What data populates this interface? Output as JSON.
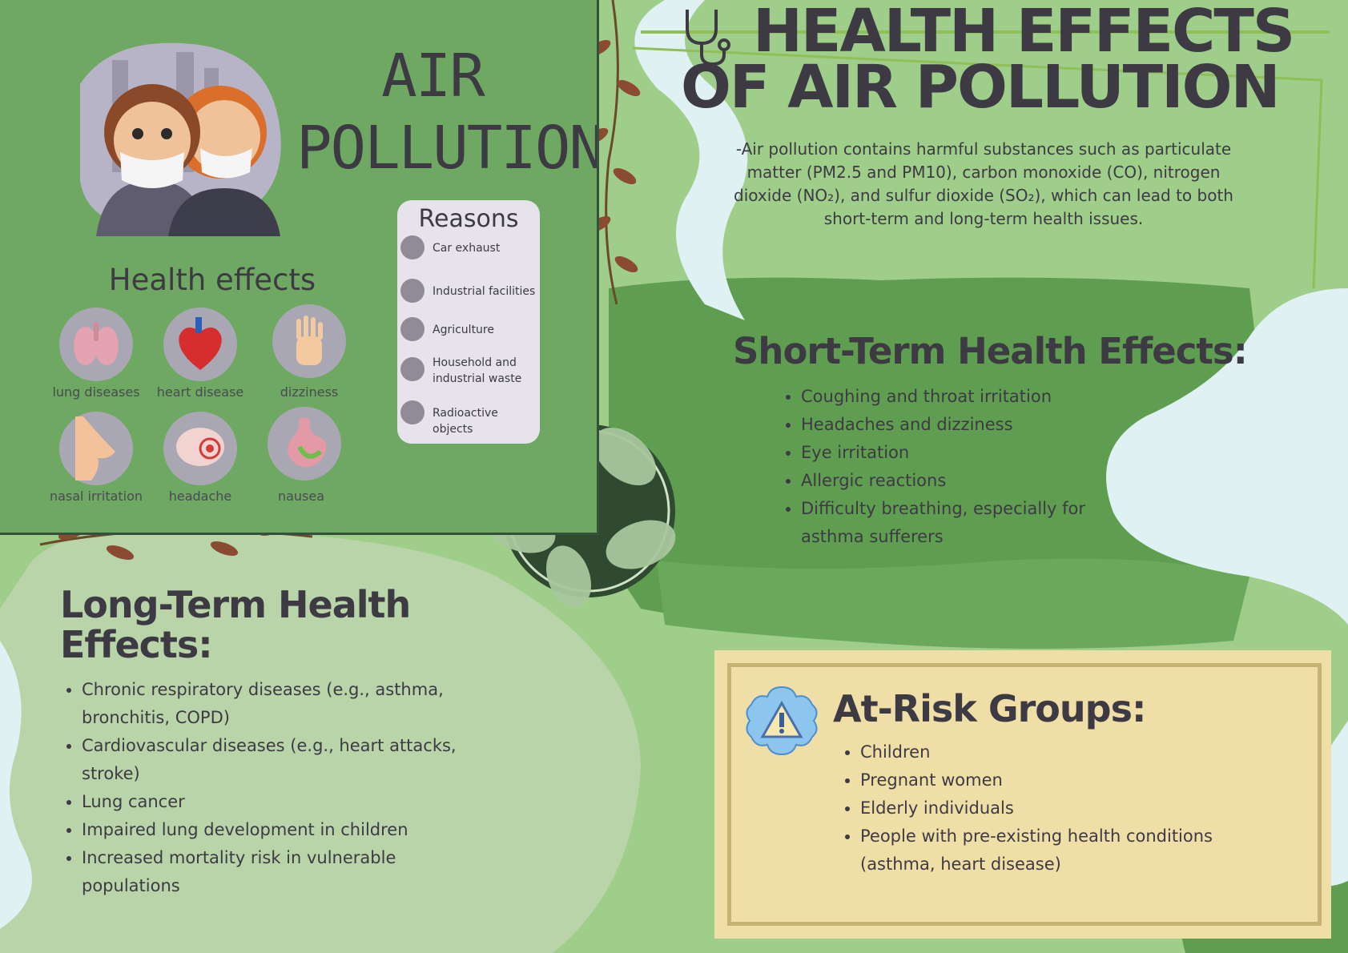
{
  "panel": {
    "title": "AIR POLLUTION",
    "health_effects_heading": "Health effects",
    "effects": [
      {
        "label": "lung diseases",
        "icon": "lungs-icon"
      },
      {
        "label": "heart disease",
        "icon": "heart-icon"
      },
      {
        "label": "dizziness",
        "icon": "hand-icon"
      },
      {
        "label": "nasal irritation",
        "icon": "nose-icon"
      },
      {
        "label": "headache",
        "icon": "brain-icon"
      },
      {
        "label": "nausea",
        "icon": "stomach-icon"
      }
    ],
    "reasons_title": "Reasons",
    "reasons": [
      {
        "label": "Car exhaust",
        "icon": "car-icon"
      },
      {
        "label": "Industrial facilities",
        "icon": "factory-icon"
      },
      {
        "label": "Agriculture",
        "icon": "wheat-icon"
      },
      {
        "label": "Household and industrial waste",
        "icon": "trash-icon"
      },
      {
        "label": "Radioactive objects",
        "icon": "radiation-icon"
      }
    ]
  },
  "main": {
    "title_line1": "HEALTH EFFECTS",
    "title_line2": "OF AIR POLLUTION",
    "intro": "-Air pollution contains harmful substances such as particulate matter (PM2.5 and PM10), carbon monoxide (CO), nitrogen dioxide (NO₂), and sulfur dioxide (SO₂), which can lead to both short-term and long-term health issues."
  },
  "short_term": {
    "heading": "Short-Term Health Effects:",
    "items": [
      "Coughing and throat irritation",
      "Headaches and dizziness",
      "Eye irritation",
      "Allergic reactions",
      "Difficulty breathing, especially for asthma sufferers"
    ]
  },
  "long_term": {
    "heading": "Long-Term Health Effects:",
    "items": [
      "Chronic respiratory diseases (e.g., asthma, bronchitis, COPD)",
      "Cardiovascular diseases (e.g., heart attacks, stroke)",
      "Lung cancer",
      "Impaired lung development in children",
      "Increased mortality risk in vulnerable populations"
    ]
  },
  "at_risk": {
    "heading": "At-Risk Groups:",
    "items": [
      "Children",
      "Pregnant women",
      "Elderly individuals",
      "People with pre-existing health conditions (asthma, heart disease)"
    ]
  },
  "colors": {
    "background": "#9fcd8a",
    "panel": "#6fa862",
    "dark_green": "#5f9e50",
    "light_blob": "#b8d4a8",
    "river": "#dff1f2",
    "text": "#3d3a44",
    "risk_box": "#f0dea7",
    "vine": "#8b4a32"
  }
}
